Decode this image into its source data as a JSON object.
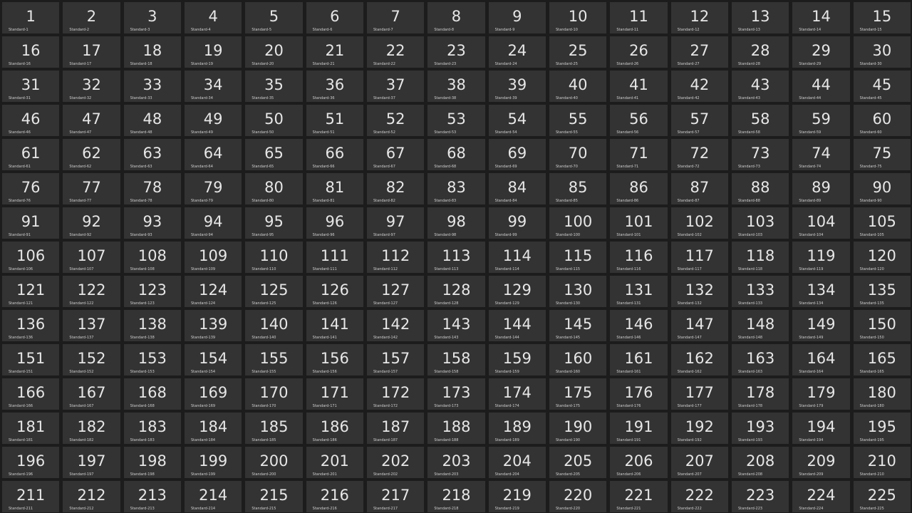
{
  "theme": {
    "background": "#1c1c1c",
    "tile": "#333333",
    "text": "#e6e6e6"
  },
  "tiles": [
    {
      "n": "1",
      "label": "Standard-1"
    },
    {
      "n": "2",
      "label": "Standard-2"
    },
    {
      "n": "3",
      "label": "Standard-3"
    },
    {
      "n": "4",
      "label": "Standard-4"
    },
    {
      "n": "5",
      "label": "Standard-5"
    },
    {
      "n": "6",
      "label": "Standard-6"
    },
    {
      "n": "7",
      "label": "Standard-7"
    },
    {
      "n": "8",
      "label": "Standard-8"
    },
    {
      "n": "9",
      "label": "Standard-9"
    },
    {
      "n": "10",
      "label": "Standard-10"
    },
    {
      "n": "11",
      "label": "Standard-11"
    },
    {
      "n": "12",
      "label": "Standard-12"
    },
    {
      "n": "13",
      "label": "Standard-13"
    },
    {
      "n": "14",
      "label": "Standard-14"
    },
    {
      "n": "15",
      "label": "Standard-15"
    },
    {
      "n": "16",
      "label": "Standard-16"
    },
    {
      "n": "17",
      "label": "Standard-17"
    },
    {
      "n": "18",
      "label": "Standard-18"
    },
    {
      "n": "19",
      "label": "Standard-19"
    },
    {
      "n": "20",
      "label": "Standard-20"
    },
    {
      "n": "21",
      "label": "Standard-21"
    },
    {
      "n": "22",
      "label": "Standard-22"
    },
    {
      "n": "23",
      "label": "Standard-23"
    },
    {
      "n": "24",
      "label": "Standard-24"
    },
    {
      "n": "25",
      "label": "Standard-25"
    },
    {
      "n": "26",
      "label": "Standard-26"
    },
    {
      "n": "27",
      "label": "Standard-27"
    },
    {
      "n": "28",
      "label": "Standard-28"
    },
    {
      "n": "29",
      "label": "Standard-29"
    },
    {
      "n": "30",
      "label": "Standard-30"
    },
    {
      "n": "31",
      "label": "Standard-31"
    },
    {
      "n": "32",
      "label": "Standard-32"
    },
    {
      "n": "33",
      "label": "Standard-33"
    },
    {
      "n": "34",
      "label": "Standard-34"
    },
    {
      "n": "35",
      "label": "Standard-35"
    },
    {
      "n": "36",
      "label": "Standard-36"
    },
    {
      "n": "37",
      "label": "Standard-37"
    },
    {
      "n": "38",
      "label": "Standard-38"
    },
    {
      "n": "39",
      "label": "Standard-39"
    },
    {
      "n": "40",
      "label": "Standard-40"
    },
    {
      "n": "41",
      "label": "Standard-41"
    },
    {
      "n": "42",
      "label": "Standard-42"
    },
    {
      "n": "43",
      "label": "Standard-43"
    },
    {
      "n": "44",
      "label": "Standard-44"
    },
    {
      "n": "45",
      "label": "Standard-45"
    },
    {
      "n": "46",
      "label": "Standard-46"
    },
    {
      "n": "47",
      "label": "Standard-47"
    },
    {
      "n": "48",
      "label": "Standard-48"
    },
    {
      "n": "49",
      "label": "Standard-49"
    },
    {
      "n": "50",
      "label": "Standard-50"
    },
    {
      "n": "51",
      "label": "Standard-51"
    },
    {
      "n": "52",
      "label": "Standard-52"
    },
    {
      "n": "53",
      "label": "Standard-53"
    },
    {
      "n": "54",
      "label": "Standard-54"
    },
    {
      "n": "55",
      "label": "Standard-55"
    },
    {
      "n": "56",
      "label": "Standard-56"
    },
    {
      "n": "57",
      "label": "Standard-57"
    },
    {
      "n": "58",
      "label": "Standard-58"
    },
    {
      "n": "59",
      "label": "Standard-59"
    },
    {
      "n": "60",
      "label": "Standard-60"
    },
    {
      "n": "61",
      "label": "Standard-61"
    },
    {
      "n": "62",
      "label": "Standard-62"
    },
    {
      "n": "63",
      "label": "Standard-63"
    },
    {
      "n": "64",
      "label": "Standard-64"
    },
    {
      "n": "65",
      "label": "Standard-65"
    },
    {
      "n": "66",
      "label": "Standard-66"
    },
    {
      "n": "67",
      "label": "Standard-67"
    },
    {
      "n": "68",
      "label": "Standard-68"
    },
    {
      "n": "69",
      "label": "Standard-69"
    },
    {
      "n": "70",
      "label": "Standard-70"
    },
    {
      "n": "71",
      "label": "Standard-71"
    },
    {
      "n": "72",
      "label": "Standard-72"
    },
    {
      "n": "73",
      "label": "Standard-73"
    },
    {
      "n": "74",
      "label": "Standard-74"
    },
    {
      "n": "75",
      "label": "Standard-75"
    },
    {
      "n": "76",
      "label": "Standard-76"
    },
    {
      "n": "77",
      "label": "Standard-77"
    },
    {
      "n": "78",
      "label": "Standard-78"
    },
    {
      "n": "79",
      "label": "Standard-79"
    },
    {
      "n": "80",
      "label": "Standard-80"
    },
    {
      "n": "81",
      "label": "Standard-81"
    },
    {
      "n": "82",
      "label": "Standard-82"
    },
    {
      "n": "83",
      "label": "Standard-83"
    },
    {
      "n": "84",
      "label": "Standard-84"
    },
    {
      "n": "85",
      "label": "Standard-85"
    },
    {
      "n": "86",
      "label": "Standard-86"
    },
    {
      "n": "87",
      "label": "Standard-87"
    },
    {
      "n": "88",
      "label": "Standard-88"
    },
    {
      "n": "89",
      "label": "Standard-89"
    },
    {
      "n": "90",
      "label": "Standard-90"
    },
    {
      "n": "91",
      "label": "Standard-91"
    },
    {
      "n": "92",
      "label": "Standard-92"
    },
    {
      "n": "93",
      "label": "Standard-93"
    },
    {
      "n": "94",
      "label": "Standard-94"
    },
    {
      "n": "95",
      "label": "Standard-95"
    },
    {
      "n": "96",
      "label": "Standard-96"
    },
    {
      "n": "97",
      "label": "Standard-97"
    },
    {
      "n": "98",
      "label": "Standard-98"
    },
    {
      "n": "99",
      "label": "Standard-99"
    },
    {
      "n": "100",
      "label": "Standard-100"
    },
    {
      "n": "101",
      "label": "Standard-101"
    },
    {
      "n": "102",
      "label": "Standard-102"
    },
    {
      "n": "103",
      "label": "Standard-103"
    },
    {
      "n": "104",
      "label": "Standard-104"
    },
    {
      "n": "105",
      "label": "Standard-105"
    },
    {
      "n": "106",
      "label": "Standard-106"
    },
    {
      "n": "107",
      "label": "Standard-107"
    },
    {
      "n": "108",
      "label": "Standard-108"
    },
    {
      "n": "109",
      "label": "Standard-109"
    },
    {
      "n": "110",
      "label": "Standard-110"
    },
    {
      "n": "111",
      "label": "Standard-111"
    },
    {
      "n": "112",
      "label": "Standard-112"
    },
    {
      "n": "113",
      "label": "Standard-113"
    },
    {
      "n": "114",
      "label": "Standard-114"
    },
    {
      "n": "115",
      "label": "Standard-115"
    },
    {
      "n": "116",
      "label": "Standard-116"
    },
    {
      "n": "117",
      "label": "Standard-117"
    },
    {
      "n": "118",
      "label": "Standard-118"
    },
    {
      "n": "119",
      "label": "Standard-119"
    },
    {
      "n": "120",
      "label": "Standard-120"
    },
    {
      "n": "121",
      "label": "Standard-121"
    },
    {
      "n": "122",
      "label": "Standard-122"
    },
    {
      "n": "123",
      "label": "Standard-123"
    },
    {
      "n": "124",
      "label": "Standard-124"
    },
    {
      "n": "125",
      "label": "Standard-125"
    },
    {
      "n": "126",
      "label": "Standard-126"
    },
    {
      "n": "127",
      "label": "Standard-127"
    },
    {
      "n": "128",
      "label": "Standard-128"
    },
    {
      "n": "129",
      "label": "Standard-129"
    },
    {
      "n": "130",
      "label": "Standard-130"
    },
    {
      "n": "131",
      "label": "Standard-131"
    },
    {
      "n": "132",
      "label": "Standard-132"
    },
    {
      "n": "133",
      "label": "Standard-133"
    },
    {
      "n": "134",
      "label": "Standard-134"
    },
    {
      "n": "135",
      "label": "Standard-135"
    },
    {
      "n": "136",
      "label": "Standard-136"
    },
    {
      "n": "137",
      "label": "Standard-137"
    },
    {
      "n": "138",
      "label": "Standard-138"
    },
    {
      "n": "139",
      "label": "Standard-139"
    },
    {
      "n": "140",
      "label": "Standard-140"
    },
    {
      "n": "141",
      "label": "Standard-141"
    },
    {
      "n": "142",
      "label": "Standard-142"
    },
    {
      "n": "143",
      "label": "Standard-143"
    },
    {
      "n": "144",
      "label": "Standard-144"
    },
    {
      "n": "145",
      "label": "Standard-145"
    },
    {
      "n": "146",
      "label": "Standard-146"
    },
    {
      "n": "147",
      "label": "Standard-147"
    },
    {
      "n": "148",
      "label": "Standard-148"
    },
    {
      "n": "149",
      "label": "Standard-149"
    },
    {
      "n": "150",
      "label": "Standard-150"
    },
    {
      "n": "151",
      "label": "Standard-151"
    },
    {
      "n": "152",
      "label": "Standard-152"
    },
    {
      "n": "153",
      "label": "Standard-153"
    },
    {
      "n": "154",
      "label": "Standard-154"
    },
    {
      "n": "155",
      "label": "Standard-155"
    },
    {
      "n": "156",
      "label": "Standard-156"
    },
    {
      "n": "157",
      "label": "Standard-157"
    },
    {
      "n": "158",
      "label": "Standard-158"
    },
    {
      "n": "159",
      "label": "Standard-159"
    },
    {
      "n": "160",
      "label": "Standard-160"
    },
    {
      "n": "161",
      "label": "Standard-161"
    },
    {
      "n": "162",
      "label": "Standard-162"
    },
    {
      "n": "163",
      "label": "Standard-163"
    },
    {
      "n": "164",
      "label": "Standard-164"
    },
    {
      "n": "165",
      "label": "Standard-165"
    },
    {
      "n": "166",
      "label": "Standard-166"
    },
    {
      "n": "167",
      "label": "Standard-167"
    },
    {
      "n": "168",
      "label": "Standard-168"
    },
    {
      "n": "169",
      "label": "Standard-169"
    },
    {
      "n": "170",
      "label": "Standard-170"
    },
    {
      "n": "171",
      "label": "Standard-171"
    },
    {
      "n": "172",
      "label": "Standard-172"
    },
    {
      "n": "173",
      "label": "Standard-173"
    },
    {
      "n": "174",
      "label": "Standard-174"
    },
    {
      "n": "175",
      "label": "Standard-175"
    },
    {
      "n": "176",
      "label": "Standard-176"
    },
    {
      "n": "177",
      "label": "Standard-177"
    },
    {
      "n": "178",
      "label": "Standard-178"
    },
    {
      "n": "179",
      "label": "Standard-179"
    },
    {
      "n": "180",
      "label": "Standard-180"
    },
    {
      "n": "181",
      "label": "Standard-181"
    },
    {
      "n": "182",
      "label": "Standard-182"
    },
    {
      "n": "183",
      "label": "Standard-183"
    },
    {
      "n": "184",
      "label": "Standard-184"
    },
    {
      "n": "185",
      "label": "Standard-185"
    },
    {
      "n": "186",
      "label": "Standard-186"
    },
    {
      "n": "187",
      "label": "Standard-187"
    },
    {
      "n": "188",
      "label": "Standard-188"
    },
    {
      "n": "189",
      "label": "Standard-189"
    },
    {
      "n": "190",
      "label": "Standard-190"
    },
    {
      "n": "191",
      "label": "Standard-191"
    },
    {
      "n": "192",
      "label": "Standard-192"
    },
    {
      "n": "193",
      "label": "Standard-193"
    },
    {
      "n": "194",
      "label": "Standard-194"
    },
    {
      "n": "195",
      "label": "Standard-195"
    },
    {
      "n": "196",
      "label": "Standard-196"
    },
    {
      "n": "197",
      "label": "Standard-197"
    },
    {
      "n": "198",
      "label": "Standard-198"
    },
    {
      "n": "199",
      "label": "Standard-199"
    },
    {
      "n": "200",
      "label": "Standard-200"
    },
    {
      "n": "201",
      "label": "Standard-201"
    },
    {
      "n": "202",
      "label": "Standard-202"
    },
    {
      "n": "203",
      "label": "Standard-203"
    },
    {
      "n": "204",
      "label": "Standard-204"
    },
    {
      "n": "205",
      "label": "Standard-205"
    },
    {
      "n": "206",
      "label": "Standard-206"
    },
    {
      "n": "207",
      "label": "Standard-207"
    },
    {
      "n": "208",
      "label": "Standard-208"
    },
    {
      "n": "209",
      "label": "Standard-209"
    },
    {
      "n": "210",
      "label": "Standard-210"
    },
    {
      "n": "211",
      "label": "Standard-211"
    },
    {
      "n": "212",
      "label": "Standard-212"
    },
    {
      "n": "213",
      "label": "Standard-213"
    },
    {
      "n": "214",
      "label": "Standard-214"
    },
    {
      "n": "215",
      "label": "Standard-215"
    },
    {
      "n": "216",
      "label": "Standard-216"
    },
    {
      "n": "217",
      "label": "Standard-217"
    },
    {
      "n": "218",
      "label": "Standard-218"
    },
    {
      "n": "219",
      "label": "Standard-219"
    },
    {
      "n": "220",
      "label": "Standard-220"
    },
    {
      "n": "221",
      "label": "Standard-221"
    },
    {
      "n": "222",
      "label": "Standard-222"
    },
    {
      "n": "223",
      "label": "Standard-223"
    },
    {
      "n": "224",
      "label": "Standard-224"
    },
    {
      "n": "225",
      "label": "Standard-225"
    }
  ]
}
